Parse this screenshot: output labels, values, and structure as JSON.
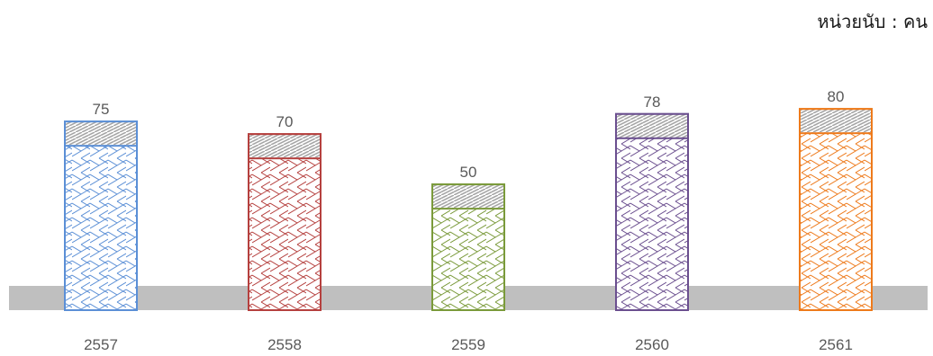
{
  "unit_label": "หน่วยนับ : คน",
  "chart_data": {
    "type": "bar",
    "title": "",
    "xlabel": "",
    "ylabel": "",
    "unit": "หน่วยนับ : คน",
    "categories": [
      "2557",
      "2558",
      "2559",
      "2560",
      "2561"
    ],
    "values": [
      75,
      70,
      50,
      78,
      80
    ],
    "ylim": [
      0,
      84
    ],
    "grid": false,
    "legend": "none",
    "bar_colors": [
      "#5b8fd6",
      "#b5403e",
      "#7a9a3a",
      "#6b4f8f",
      "#ee7a1b"
    ],
    "cap_color": "#a6a6a6",
    "baseline_band_color": "#bfbfbf"
  }
}
